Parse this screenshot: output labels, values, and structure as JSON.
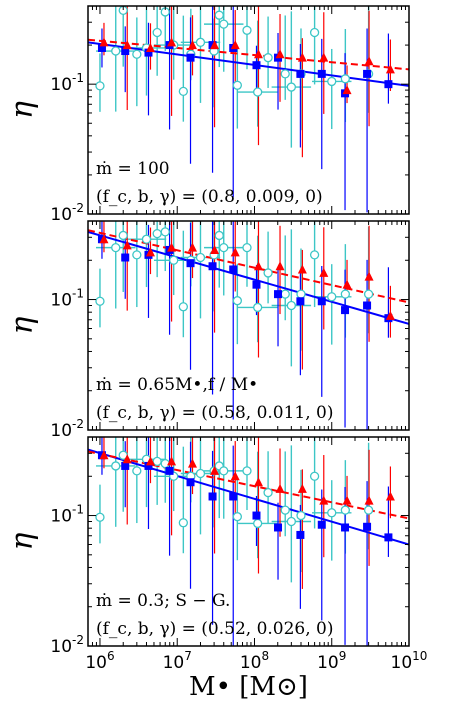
{
  "chart_data": [
    {
      "type": "scatter",
      "annotation": [
        "ṁ = 100",
        "(f_c, b, γ) = (0.8, 0.009, 0)"
      ],
      "ylabel": "η",
      "xscale": "log",
      "yscale": "log",
      "xlim": [
        700000,
        10000000000
      ],
      "ylim": [
        0.01,
        0.4
      ],
      "series": [
        {
          "marker": "open-circle",
          "color": "#3cc6c6",
          "x": [
            1000000.0,
            1600000.0,
            2000000.0,
            3000000.0,
            4000000.0,
            5500000.0,
            7000000.0,
            9000000.0,
            12000000.0,
            15000000.0,
            20000000.0,
            30000000.0,
            35000000.0,
            40000000.0,
            60000000.0,
            80000000.0,
            110000000.0,
            150000000.0,
            250000000.0,
            300000000.0,
            400000000.0,
            600000000.0,
            1000000000.0,
            1500000000.0,
            3000000000.0
          ],
          "y": [
            0.097,
            0.18,
            0.37,
            0.17,
            0.19,
            0.25,
            0.36,
            0.2,
            0.088,
            0.17,
            0.21,
            0.18,
            0.34,
            0.29,
            0.098,
            0.26,
            0.087,
            0.16,
            0.12,
            0.095,
            0.12,
            0.25,
            0.105,
            0.11,
            0.12
          ]
        },
        {
          "marker": "square",
          "color": "#0000ff",
          "x": [
            1000000.0,
            2000000.0,
            4000000.0,
            7500000.0,
            14000000.0,
            27000000.0,
            50000000.0,
            100000000.0,
            190000000.0,
            370000000.0,
            700000000.0,
            1400000000.0,
            2700000000.0,
            5100000000.0
          ],
          "y": [
            0.19,
            0.18,
            0.175,
            0.2,
            0.16,
            0.2,
            0.19,
            0.14,
            0.16,
            0.12,
            0.12,
            0.085,
            0.12,
            0.1
          ]
        },
        {
          "marker": "triangle",
          "color": "#ff0000",
          "x": [
            1000000.0,
            2000000.0,
            4000000.0,
            7500000.0,
            14000000.0,
            27000000.0,
            50000000.0,
            100000000.0,
            190000000.0,
            370000000.0,
            700000000.0,
            1400000000.0,
            2700000000.0,
            5100000000.0
          ],
          "y": [
            0.21,
            0.2,
            0.19,
            0.21,
            0.2,
            0.2,
            0.2,
            0.17,
            0.17,
            0.16,
            0.16,
            0.09,
            0.15,
            0.13
          ]
        }
      ],
      "fit_lines": [
        {
          "style": "solid",
          "color": "#0000ff",
          "x": [
            700000,
            10000000000
          ],
          "y": [
            0.21,
            0.097
          ]
        },
        {
          "style": "dashed",
          "color": "#ff0000",
          "x": [
            700000,
            10000000000
          ],
          "y": [
            0.22,
            0.13
          ]
        }
      ]
    },
    {
      "type": "scatter",
      "annotation": [
        "ṁ = 0.65M•,f / M•",
        "(f_c, b, γ) = (0.58, 0.011, 0)"
      ],
      "ylabel": "η",
      "xscale": "log",
      "yscale": "log",
      "xlim": [
        700000,
        10000000000
      ],
      "ylim": [
        0.01,
        0.4
      ],
      "series": [
        {
          "marker": "open-circle",
          "color": "#3cc6c6",
          "x": [
            1000000.0,
            1600000.0,
            2000000.0,
            3000000.0,
            4000000.0,
            5500000.0,
            7000000.0,
            9000000.0,
            12000000.0,
            15000000.0,
            20000000.0,
            30000000.0,
            35000000.0,
            40000000.0,
            60000000.0,
            80000000.0,
            110000000.0,
            150000000.0,
            250000000.0,
            300000000.0,
            400000000.0,
            600000000.0,
            1000000000.0,
            1500000000.0,
            3000000000.0
          ],
          "y": [
            0.097,
            0.25,
            0.31,
            0.22,
            0.29,
            0.32,
            0.33,
            0.2,
            0.088,
            0.2,
            0.21,
            0.22,
            0.31,
            0.25,
            0.098,
            0.25,
            0.087,
            0.16,
            0.11,
            0.09,
            0.11,
            0.22,
            0.105,
            0.11,
            0.11
          ]
        },
        {
          "marker": "square",
          "color": "#0000ff",
          "x": [
            1000000.0,
            2000000.0,
            4000000.0,
            7500000.0,
            14000000.0,
            27000000.0,
            50000000.0,
            100000000.0,
            190000000.0,
            370000000.0,
            700000000.0,
            1400000000.0,
            2700000000.0,
            5100000000.0
          ],
          "y": [
            0.29,
            0.21,
            0.22,
            0.24,
            0.19,
            0.18,
            0.17,
            0.13,
            0.11,
            0.097,
            0.097,
            0.083,
            0.09,
            0.072
          ]
        },
        {
          "marker": "triangle",
          "color": "#ff0000",
          "x": [
            1000000.0,
            2000000.0,
            4000000.0,
            7500000.0,
            14000000.0,
            27000000.0,
            50000000.0,
            100000000.0,
            190000000.0,
            370000000.0,
            700000000.0,
            1400000000.0,
            2700000000.0,
            5100000000.0
          ],
          "y": [
            0.29,
            0.26,
            0.23,
            0.25,
            0.25,
            0.24,
            0.23,
            0.18,
            0.18,
            0.17,
            0.16,
            0.13,
            0.15,
            0.075
          ]
        }
      ],
      "fit_lines": [
        {
          "style": "solid",
          "color": "#0000ff",
          "x": [
            700000,
            10000000000
          ],
          "y": [
            0.33,
            0.065
          ]
        },
        {
          "style": "dashed",
          "color": "#ff0000",
          "x": [
            700000,
            10000000000
          ],
          "y": [
            0.34,
            0.095
          ]
        }
      ]
    },
    {
      "type": "scatter",
      "annotation": [
        "ṁ = 0.3;  S − G.",
        "(f_c, b, γ) = (0.52, 0.026, 0)"
      ],
      "ylabel": "η",
      "xlabel": "M• [M⊙]",
      "xscale": "log",
      "yscale": "log",
      "xlim": [
        700000,
        10000000000
      ],
      "ylim": [
        0.01,
        0.4
      ],
      "series": [
        {
          "marker": "open-circle",
          "color": "#3cc6c6",
          "x": [
            1000000.0,
            1600000.0,
            2000000.0,
            3000000.0,
            4000000.0,
            5500000.0,
            7000000.0,
            9000000.0,
            12000000.0,
            15000000.0,
            20000000.0,
            30000000.0,
            35000000.0,
            40000000.0,
            60000000.0,
            80000000.0,
            110000000.0,
            150000000.0,
            250000000.0,
            300000000.0,
            400000000.0,
            600000000.0,
            1000000000.0,
            1500000000.0,
            3000000000.0
          ],
          "y": [
            0.097,
            0.24,
            0.29,
            0.22,
            0.27,
            0.26,
            0.25,
            0.2,
            0.088,
            0.2,
            0.21,
            0.22,
            0.24,
            0.22,
            0.098,
            0.22,
            0.087,
            0.15,
            0.11,
            0.09,
            0.1,
            0.2,
            0.105,
            0.11,
            0.11
          ]
        },
        {
          "marker": "square",
          "color": "#0000ff",
          "x": [
            1000000.0,
            2000000.0,
            4000000.0,
            7500000.0,
            14000000.0,
            27000000.0,
            50000000.0,
            100000000.0,
            190000000.0,
            370000000.0,
            700000000.0,
            1400000000.0,
            2700000000.0,
            5100000000.0
          ],
          "y": [
            0.29,
            0.24,
            0.24,
            0.22,
            0.18,
            0.14,
            0.14,
            0.1,
            0.081,
            0.071,
            0.085,
            0.081,
            0.082,
            0.068
          ]
        },
        {
          "marker": "triangle",
          "color": "#ff0000",
          "x": [
            1000000.0,
            2000000.0,
            4000000.0,
            7500000.0,
            14000000.0,
            27000000.0,
            50000000.0,
            100000000.0,
            190000000.0,
            370000000.0,
            700000000.0,
            1400000000.0,
            2700000000.0,
            5100000000.0
          ],
          "y": [
            0.29,
            0.27,
            0.26,
            0.26,
            0.25,
            0.22,
            0.2,
            0.18,
            0.16,
            0.16,
            0.13,
            0.13,
            0.13,
            0.14
          ]
        }
      ],
      "fit_lines": [
        {
          "style": "solid",
          "color": "#0000ff",
          "x": [
            700000,
            10000000000
          ],
          "y": [
            0.32,
            0.06
          ]
        },
        {
          "style": "dashed",
          "color": "#ff0000",
          "x": [
            700000,
            10000000000
          ],
          "y": [
            0.31,
            0.095
          ]
        }
      ]
    }
  ],
  "axes": {
    "x_ticks": [
      {
        "value": 1000000,
        "base": "10",
        "exp": "6"
      },
      {
        "value": 10000000,
        "base": "10",
        "exp": "7"
      },
      {
        "value": 100000000,
        "base": "10",
        "exp": "8"
      },
      {
        "value": 1000000000,
        "base": "10",
        "exp": "9"
      },
      {
        "value": 10000000000,
        "base": "10",
        "exp": "10"
      }
    ],
    "y_ticks": [
      {
        "value": 0.1,
        "base": "10",
        "exp": "-1"
      },
      {
        "value": 0.01,
        "base": "10",
        "exp": "-2"
      }
    ]
  }
}
